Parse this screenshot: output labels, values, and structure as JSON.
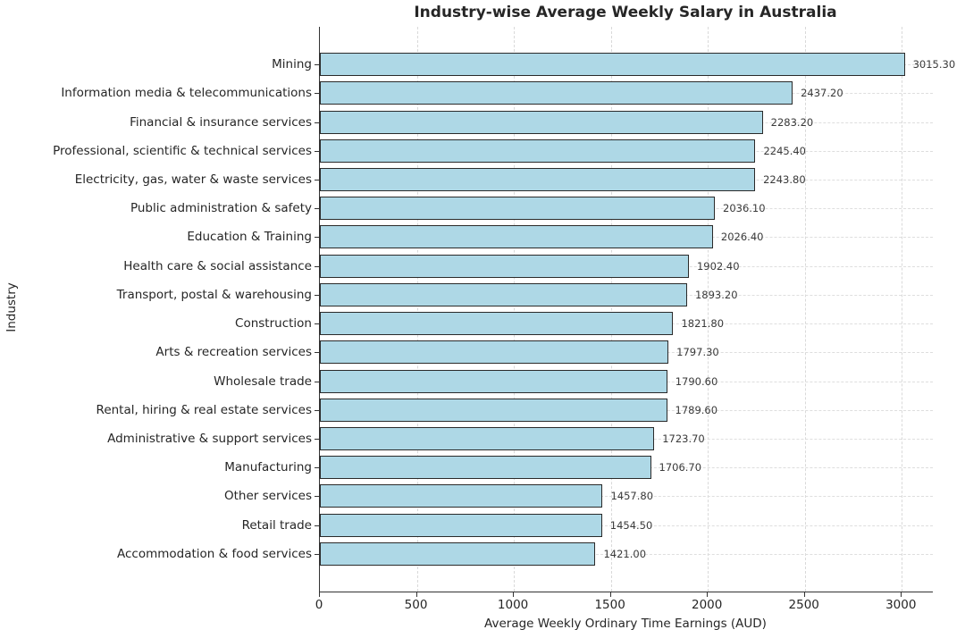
{
  "title": "Industry-wise Average Weekly Salary in Australia",
  "chart_data": {
    "type": "bar",
    "orientation": "horizontal",
    "title": "Industry-wise Average Weekly Salary in Australia",
    "xlabel": "Average Weekly Ordinary Time Earnings (AUD)",
    "ylabel": "Industry",
    "categories": [
      "Mining",
      "Information media & telecommunications",
      "Financial & insurance services",
      "Professional, scientific & technical services",
      "Electricity, gas, water & waste services",
      "Public administration & safety",
      "Education & Training",
      "Health care & social assistance",
      "Transport, postal & warehousing",
      "Construction",
      "Arts & recreation services",
      "Wholesale trade",
      "Rental, hiring & real estate services",
      "Administrative & support services",
      "Manufacturing",
      "Other services",
      "Retail trade",
      "Accommodation & food services"
    ],
    "values": [
      3015.3,
      2437.2,
      2283.2,
      2245.4,
      2243.8,
      2036.1,
      2026.4,
      1902.4,
      1893.2,
      1821.8,
      1797.3,
      1790.6,
      1789.6,
      1723.7,
      1706.7,
      1457.8,
      1454.5,
      1421.0
    ],
    "value_labels": [
      "3015.30",
      "2437.20",
      "2283.20",
      "2245.40",
      "2243.80",
      "2036.10",
      "2026.40",
      "1902.40",
      "1893.20",
      "1821.80",
      "1797.30",
      "1790.60",
      "1789.60",
      "1723.70",
      "1706.70",
      "1457.80",
      "1454.50",
      "1421.00"
    ],
    "xticks": [
      0,
      500,
      1000,
      1500,
      2000,
      2500,
      3000
    ],
    "xlim": [
      0,
      3160
    ],
    "grid": true,
    "legend": false,
    "bar_color": "#aed8e6",
    "bar_edge_color": "#2a2a2a",
    "grid_color": "#d9d9d9",
    "text_color": "#262626"
  }
}
